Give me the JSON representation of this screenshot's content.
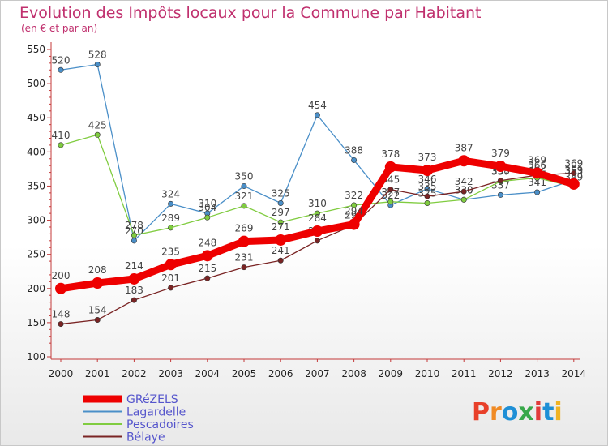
{
  "title": "Evolution des Impôts locaux pour la Commune par Habitant",
  "subtitle": "(en € et par an)",
  "brand": {
    "text": "Proxiti",
    "letters": [
      "P",
      "r",
      "o",
      "x",
      "i",
      "t",
      "i"
    ],
    "colors": [
      "#e8402a",
      "#f08a24",
      "#1e8fd6",
      "#38a84a",
      "#e23b3b",
      "#1e8fd6",
      "#f0b324"
    ]
  },
  "chart_data": {
    "type": "line",
    "title": "Evolution des Impôts locaux pour la Commune par Habitant",
    "subtitle": "(en € et par an)",
    "x": [
      "2000",
      "2001",
      "2002",
      "2003",
      "2004",
      "2005",
      "2006",
      "2007",
      "2008",
      "2009",
      "2010",
      "2011",
      "2012",
      "2013",
      "2014"
    ],
    "ylim": [
      100,
      550
    ],
    "yticks": [
      100,
      150,
      200,
      250,
      300,
      350,
      400,
      450,
      500,
      550
    ],
    "grid": false,
    "legend_position": "bottom-left",
    "series": [
      {
        "name": "Lagardelle",
        "color": "#4a8fc8",
        "values": [
          520,
          528,
          270,
          324,
          310,
          350,
          325,
          454,
          388,
          322,
          346,
          330,
          337,
          341,
          359
        ],
        "labels": [
          "520",
          "528",
          "270",
          "324",
          "310",
          "350",
          "325",
          "454",
          "388",
          "322",
          "346",
          "330",
          "337",
          "341",
          "359"
        ]
      },
      {
        "name": "Pescadoires",
        "color": "#80cc40",
        "values": [
          410,
          425,
          278,
          289,
          304,
          321,
          297,
          310,
          322,
          327,
          325,
          330,
          357,
          362,
          349
        ],
        "labels": [
          "410",
          "425",
          "278",
          "289",
          "304",
          "321",
          "297",
          "310",
          "322",
          "327",
          "325",
          "330",
          "357",
          "362",
          "349"
        ]
      },
      {
        "name": "Bélaye",
        "color": "#7a2424",
        "values": [
          148,
          154,
          183,
          201,
          215,
          231,
          241,
          270,
          293,
          345,
          335,
          342,
          358,
          366,
          369
        ],
        "labels": [
          "148",
          "154",
          "183",
          "201",
          "215",
          "231",
          "241",
          "270",
          "293",
          "345",
          "335",
          "342",
          "358",
          "366",
          "369"
        ]
      },
      {
        "name": "GRéZELS",
        "color": "#ee0000",
        "values": [
          200,
          208,
          214,
          235,
          248,
          269,
          271,
          284,
          294,
          378,
          373,
          387,
          379,
          369,
          353
        ],
        "labels": [
          "200",
          "208",
          "214",
          "235",
          "248",
          "269",
          "271",
          "284",
          "294",
          "378",
          "373",
          "387",
          "379",
          "369",
          "353"
        ]
      }
    ],
    "legend": [
      "GRéZELS",
      "Lagardelle",
      "Pescadoires",
      "Bélaye"
    ]
  }
}
